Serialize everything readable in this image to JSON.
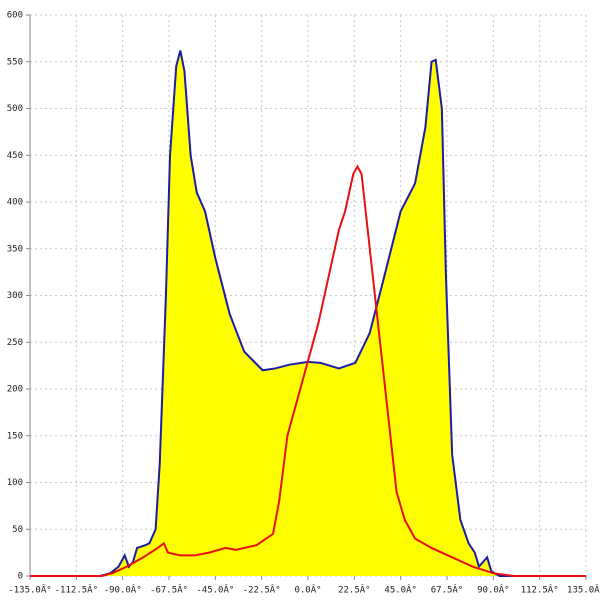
{
  "chart_data": {
    "type": "area",
    "xlim": [
      -135,
      135
    ],
    "xticks": [
      {
        "value": -135,
        "label": "-135.0Â°"
      },
      {
        "value": -112.5,
        "label": "-112.5Â°"
      },
      {
        "value": -90,
        "label": "-90.0Â°"
      },
      {
        "value": -67.5,
        "label": "-67.5Â°"
      },
      {
        "value": -45,
        "label": "-45.0Â°"
      },
      {
        "value": -22.5,
        "label": "-22.5Â°"
      },
      {
        "value": 0,
        "label": "0.0Â°"
      },
      {
        "value": 22.5,
        "label": "22.5Â°"
      },
      {
        "value": 45,
        "label": "45.0Â°"
      },
      {
        "value": 67.5,
        "label": "67.5Â°"
      },
      {
        "value": 90,
        "label": "90.0Â°"
      },
      {
        "value": 112.5,
        "label": "112.5Â°"
      },
      {
        "value": 135,
        "label": "135.0Â°"
      }
    ],
    "ylim": [
      0,
      600
    ],
    "yticks": [
      0,
      50,
      100,
      150,
      200,
      250,
      300,
      350,
      400,
      450,
      500,
      550,
      600
    ],
    "grid": true,
    "series": [
      {
        "type": "area",
        "color": "#1c1ca8",
        "fill": "#ffff00",
        "x": [
          -101,
          -96,
          -92,
          -89,
          -87,
          -85,
          -83,
          -79,
          -77,
          -74,
          -72,
          -69,
          -67,
          -64,
          -62,
          -60,
          -57,
          -54,
          -50,
          -45,
          -38,
          -31,
          -22,
          -16,
          -9,
          0,
          6,
          15,
          23,
          30,
          37,
          45,
          52,
          57,
          60,
          62,
          65,
          67,
          70,
          74,
          78,
          81,
          83,
          87,
          89,
          93,
          100
        ],
        "values": [
          0,
          3,
          10,
          22,
          10,
          15,
          30,
          33,
          35,
          50,
          120,
          300,
          450,
          545,
          562,
          540,
          450,
          410,
          390,
          340,
          280,
          240,
          220,
          222,
          226,
          229,
          228,
          222,
          228,
          260,
          320,
          390,
          420,
          480,
          550,
          552,
          500,
          320,
          130,
          60,
          35,
          25,
          10,
          20,
          5,
          0,
          0
        ]
      },
      {
        "type": "line",
        "color": "#e81010",
        "x": [
          -135,
          -100,
          -95,
          -88,
          -80,
          -73,
          -70,
          -68,
          -62,
          -55,
          -48,
          -40,
          -35,
          -25,
          -17,
          -14,
          -10,
          -5,
          0,
          5,
          10,
          15,
          18,
          22,
          24,
          26,
          30,
          35,
          40,
          43,
          47,
          52,
          60,
          70,
          80,
          90,
          100,
          135
        ],
        "values": [
          0,
          0,
          3,
          10,
          20,
          30,
          35,
          25,
          22,
          22,
          25,
          30,
          28,
          33,
          45,
          80,
          150,
          190,
          230,
          270,
          320,
          370,
          390,
          430,
          438,
          430,
          350,
          250,
          150,
          90,
          60,
          40,
          30,
          20,
          10,
          3,
          0,
          0
        ]
      }
    ]
  }
}
